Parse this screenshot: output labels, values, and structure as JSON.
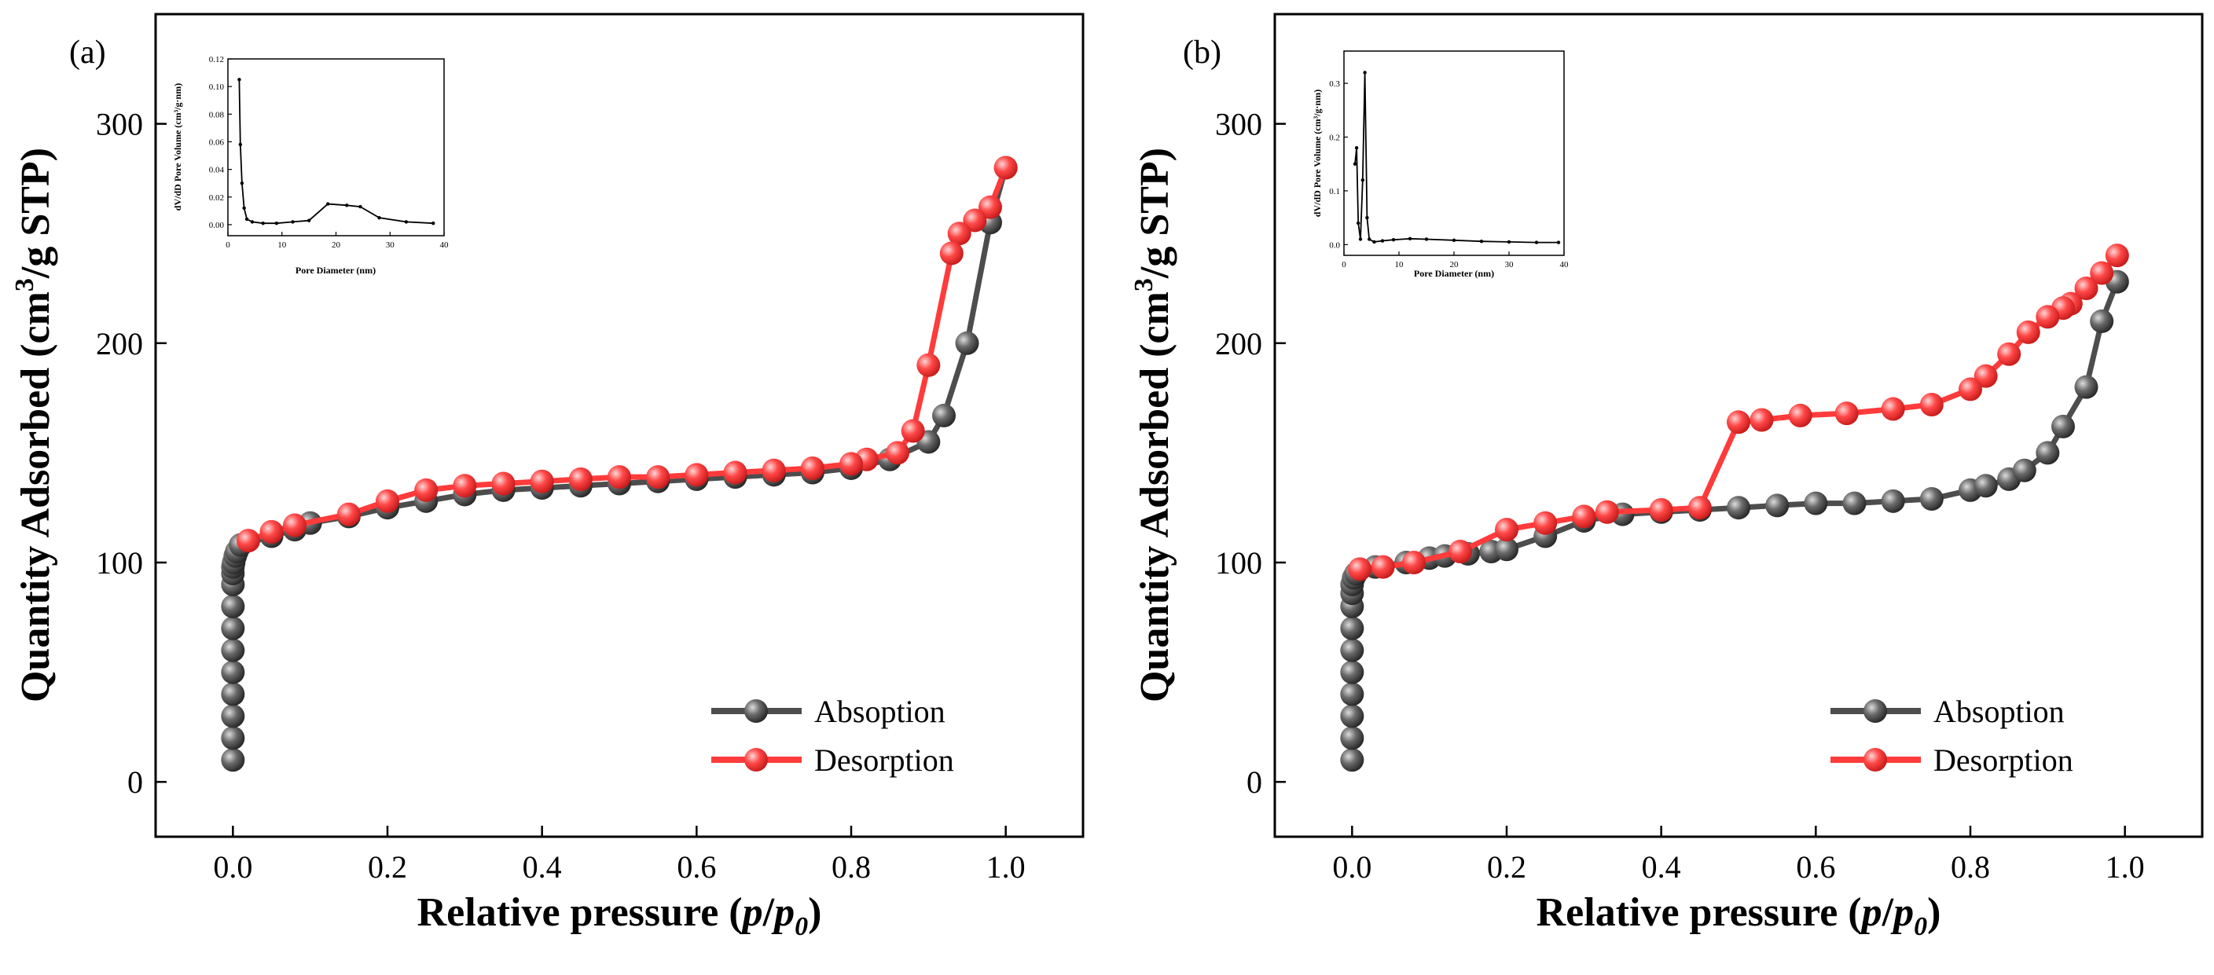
{
  "figure": {
    "panels": [
      "(a)",
      "(b)"
    ],
    "xlabel_prefix": "Relative pressure (",
    "xlabel_p": "p",
    "xlabel_slash": "/",
    "xlabel_p0": "p",
    "xlabel_sub": "0",
    "xlabel_suffix": ")",
    "ylabel_prefix": "Quantity Adsorbed (cm",
    "ylabel_sup": "3",
    "ylabel_suffix": "/g STP)"
  },
  "colors": {
    "adsorption": "#4d4d4d",
    "desorption": "#ff3b3b",
    "inset_line": "#000000"
  },
  "chart_data": [
    {
      "type": "line",
      "panel_label": "(a)",
      "title": "",
      "xlabel": "Relative pressure (p/p0)",
      "ylabel": "Quantity Adsorbed (cm3/g STP)",
      "xlim": [
        -0.1,
        1.1
      ],
      "ylim": [
        -25,
        350
      ],
      "xticks": [
        0.0,
        0.2,
        0.4,
        0.6,
        0.8,
        1.0
      ],
      "xtick_labels": [
        "0.0",
        "0.2",
        "0.4",
        "0.6",
        "0.8",
        "1.0"
      ],
      "yticks": [
        0,
        100,
        200,
        300
      ],
      "ytick_labels": [
        "0",
        "100",
        "200",
        "300"
      ],
      "legend_position": "bottom-right",
      "series": [
        {
          "name": "Absoption",
          "x": [
            0.0,
            0.0,
            0.0,
            0.0,
            0.0,
            0.0,
            0.0,
            0.0,
            0.0,
            0.0,
            0.0,
            0.001,
            0.003,
            0.005,
            0.01,
            0.05,
            0.08,
            0.1,
            0.15,
            0.2,
            0.25,
            0.3,
            0.35,
            0.4,
            0.45,
            0.5,
            0.55,
            0.6,
            0.65,
            0.7,
            0.75,
            0.8,
            0.85,
            0.9,
            0.92,
            0.95,
            0.98,
            1.0
          ],
          "y": [
            10,
            20,
            30,
            40,
            50,
            60,
            70,
            80,
            90,
            95,
            98,
            100,
            103,
            105,
            108,
            112,
            115,
            118,
            121,
            125,
            128,
            131,
            133,
            134,
            135,
            136,
            137,
            138,
            139,
            140,
            141,
            143,
            147,
            155,
            167,
            200,
            255,
            280
          ]
        },
        {
          "name": "Desorption",
          "x": [
            1.0,
            0.98,
            0.96,
            0.94,
            0.93,
            0.9,
            0.88,
            0.86,
            0.82,
            0.8,
            0.75,
            0.7,
            0.65,
            0.6,
            0.55,
            0.5,
            0.45,
            0.4,
            0.35,
            0.3,
            0.25,
            0.2,
            0.15,
            0.08,
            0.05,
            0.02
          ],
          "y": [
            280,
            262,
            256,
            250,
            241,
            190,
            160,
            150,
            147,
            145,
            143,
            142,
            141,
            140,
            139,
            139,
            138,
            137,
            136,
            135,
            133,
            128,
            122,
            117,
            114,
            110
          ]
        }
      ],
      "inset": {
        "type": "line",
        "xlabel": "Pore Diameter (nm)",
        "ylabel": "dV/dD Pore Volume (cm³/g·nm)",
        "xlim": [
          0,
          40
        ],
        "ylim": [
          -0.008,
          0.12
        ],
        "xticks": [
          0,
          10,
          20,
          30,
          40
        ],
        "xtick_labels": [
          "0",
          "10",
          "20",
          "30",
          "40"
        ],
        "yticks": [
          0.0,
          0.02,
          0.04,
          0.06,
          0.08,
          0.1,
          0.12
        ],
        "ytick_labels": [
          "0.00",
          "0.02",
          "0.04",
          "0.06",
          "0.08",
          "0.10",
          "0.12"
        ],
        "x": [
          2.1,
          2.3,
          2.6,
          3.0,
          3.5,
          4.5,
          6.5,
          9.0,
          12.0,
          15.0,
          18.5,
          22.0,
          24.5,
          28.0,
          33.0,
          38.0
        ],
        "y": [
          0.105,
          0.058,
          0.03,
          0.012,
          0.004,
          0.002,
          0.001,
          0.001,
          0.002,
          0.003,
          0.015,
          0.014,
          0.013,
          0.005,
          0.002,
          0.001
        ]
      }
    },
    {
      "type": "line",
      "panel_label": "(b)",
      "title": "",
      "xlabel": "Relative pressure (p/p0)",
      "ylabel": "Quantity Adsorbed (cm3/g STP)",
      "xlim": [
        -0.1,
        1.1
      ],
      "ylim": [
        -25,
        350
      ],
      "xticks": [
        0.0,
        0.2,
        0.4,
        0.6,
        0.8,
        1.0
      ],
      "xtick_labels": [
        "0.0",
        "0.2",
        "0.4",
        "0.6",
        "0.8",
        "1.0"
      ],
      "yticks": [
        0,
        100,
        200,
        300
      ],
      "ytick_labels": [
        "0",
        "100",
        "200",
        "300"
      ],
      "legend_position": "bottom-right",
      "series": [
        {
          "name": "Absoption",
          "x": [
            0.0,
            0.0,
            0.0,
            0.0,
            0.0,
            0.0,
            0.0,
            0.0,
            0.0,
            0.0,
            0.002,
            0.005,
            0.03,
            0.07,
            0.1,
            0.12,
            0.15,
            0.18,
            0.2,
            0.25,
            0.3,
            0.35,
            0.4,
            0.45,
            0.5,
            0.55,
            0.6,
            0.65,
            0.7,
            0.75,
            0.8,
            0.82,
            0.85,
            0.87,
            0.9,
            0.92,
            0.95,
            0.97,
            0.99
          ],
          "y": [
            10,
            20,
            30,
            40,
            50,
            60,
            70,
            80,
            86,
            90,
            93,
            95,
            98,
            100,
            102,
            103,
            104,
            105,
            106,
            112,
            119,
            122,
            123,
            124,
            125,
            126,
            127,
            127,
            128,
            129,
            133,
            135,
            138,
            142,
            150,
            162,
            180,
            210,
            228
          ]
        },
        {
          "name": "Desorption",
          "x": [
            0.99,
            0.97,
            0.95,
            0.93,
            0.92,
            0.9,
            0.875,
            0.85,
            0.82,
            0.8,
            0.75,
            0.7,
            0.64,
            0.58,
            0.53,
            0.5,
            0.45,
            0.4,
            0.33,
            0.3,
            0.25,
            0.2,
            0.14,
            0.08,
            0.04,
            0.01
          ],
          "y": [
            240,
            232,
            225,
            218,
            216,
            212,
            205,
            195,
            185,
            179,
            172,
            170,
            168,
            167,
            165,
            164,
            125,
            124,
            123,
            121,
            118,
            115,
            105,
            100,
            98,
            97
          ]
        }
      ],
      "inset": {
        "type": "line",
        "xlabel": "Pore Diameter (nm)",
        "ylabel": "dV/dD Pore Volume (cm³/g·nm)",
        "xlim": [
          0,
          40
        ],
        "ylim": [
          -0.02,
          0.36
        ],
        "xticks": [
          0,
          10,
          20,
          30,
          40
        ],
        "xtick_labels": [
          "0",
          "10",
          "20",
          "30",
          "40"
        ],
        "yticks": [
          0.0,
          0.1,
          0.2,
          0.3
        ],
        "ytick_labels": [
          "0.0",
          "0.1",
          "0.2",
          "0.3"
        ],
        "x": [
          2.0,
          2.3,
          2.6,
          3.0,
          3.4,
          3.8,
          4.2,
          4.6,
          5.5,
          7.0,
          9.0,
          12.0,
          15.0,
          20.0,
          25.0,
          30.0,
          35.0,
          39.0
        ],
        "y": [
          0.15,
          0.18,
          0.04,
          0.01,
          0.12,
          0.32,
          0.05,
          0.01,
          0.005,
          0.007,
          0.009,
          0.011,
          0.01,
          0.008,
          0.006,
          0.005,
          0.004,
          0.004
        ]
      }
    }
  ]
}
